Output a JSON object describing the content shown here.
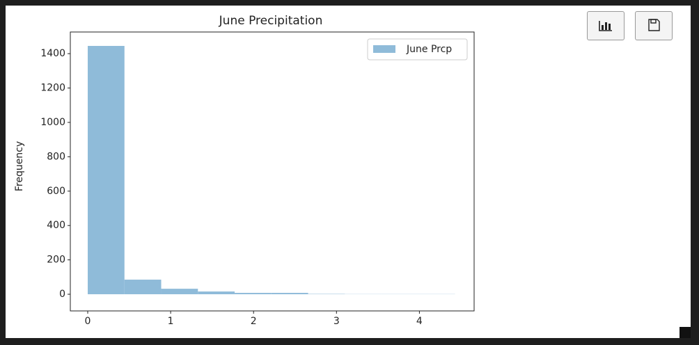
{
  "chart_data": {
    "type": "histogram",
    "title": "June Precipitation",
    "ylabel": "Frequency",
    "series": [
      {
        "name": "June Prcp",
        "color": "#8fbbd9",
        "bins": [
          0,
          0.443,
          0.886,
          1.329,
          1.772,
          2.215,
          2.658,
          3.101,
          3.544,
          3.987,
          4.43
        ],
        "values": [
          1445,
          85,
          32,
          16,
          8,
          8,
          2,
          1,
          1,
          1
        ]
      }
    ],
    "xlim": [
      -0.21,
      4.66
    ],
    "xticks": [
      0,
      1,
      2,
      3,
      4
    ],
    "ylim": [
      -97,
      1526
    ],
    "yticks": [
      0,
      200,
      400,
      600,
      800,
      1000,
      1200,
      1400
    ],
    "legend": "upper right"
  }
}
